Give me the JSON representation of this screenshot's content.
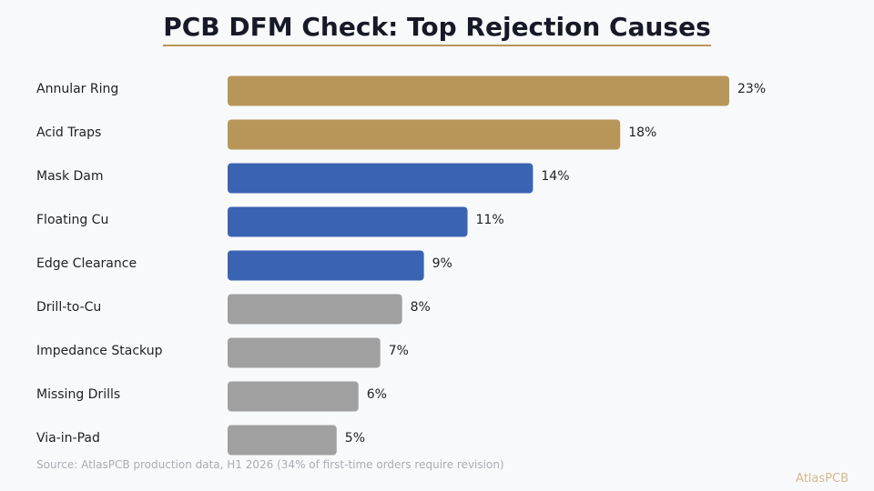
{
  "chart_data": {
    "type": "bar",
    "orientation": "horizontal",
    "title": "PCB DFM Check: Top Rejection Causes",
    "categories": [
      "Annular Ring",
      "Acid Traps",
      "Mask Dam",
      "Floating Cu",
      "Edge Clearance",
      "Drill-to-Cu",
      "Impedance Stackup",
      "Missing Drills",
      "Via-in-Pad"
    ],
    "values": [
      23,
      18,
      14,
      11,
      9,
      8,
      7,
      6,
      5
    ],
    "value_labels": [
      "23%",
      "18%",
      "14%",
      "11%",
      "9%",
      "8%",
      "7%",
      "6%",
      "5%"
    ],
    "unit": "%",
    "xlim": [
      0,
      23
    ],
    "grid": false,
    "legend": "none",
    "bar_colors": [
      "#b8965a",
      "#b8965a",
      "#3b63b3",
      "#3b63b3",
      "#3b63b3",
      "#a0a0a0",
      "#a0a0a0",
      "#a0a0a0",
      "#a0a0a0"
    ],
    "source": "Source: AtlasPCB production data, H1 2026 (34% of first-time orders require revision)"
  },
  "brand": "AtlasPCB",
  "colors": {
    "accent_gold": "#b8965a",
    "accent_blue": "#3b63b3",
    "neutral_gray": "#a0a0a0",
    "title_text": "#161a26",
    "label_text": "#222222"
  }
}
